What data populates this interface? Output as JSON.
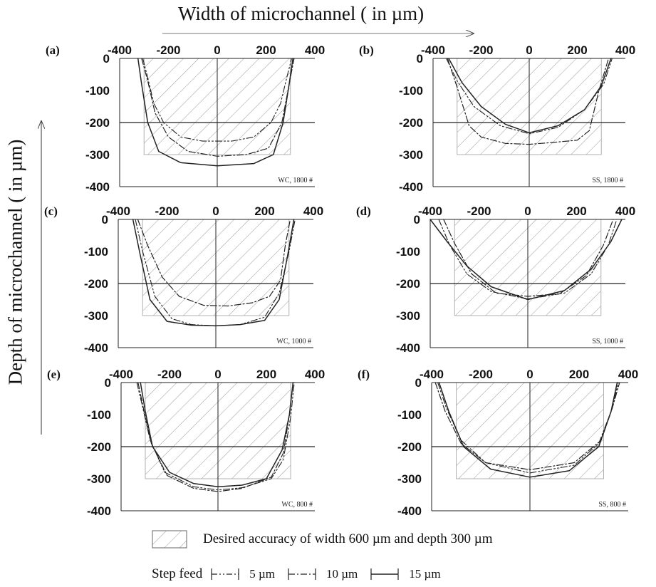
{
  "figure": {
    "title": "Width of microchannel ( in µm)",
    "ylabel": "Depth of microchannel ( in µm)",
    "legend": {
      "accuracy_label": "Desired accuracy of width 600 µm and depth 300 µm",
      "step_feed_label": "Step feed",
      "items": [
        {
          "label": "5 µm",
          "style": "dash-dot-dot"
        },
        {
          "label": "10 µm",
          "style": "dash-dot"
        },
        {
          "label": "15 µm",
          "style": "solid"
        }
      ]
    }
  },
  "chart_data": [
    {
      "panel": "(a)",
      "note": "WC, 1800 #",
      "type": "line",
      "xlim": [
        -400,
        400
      ],
      "ylim": [
        -400,
        0
      ],
      "xticks": [
        -400,
        -200,
        0,
        200,
        400
      ],
      "yticks": [
        0,
        -100,
        -200,
        -300,
        -400
      ],
      "target_region": {
        "x": [
          -300,
          300
        ],
        "y": [
          -300,
          0
        ]
      },
      "reference_line_y": -200,
      "series": [
        {
          "name": "5 µm",
          "points": [
            [
              -305,
              0
            ],
            [
              -285,
              -60
            ],
            [
              -260,
              -140
            ],
            [
              -220,
              -200
            ],
            [
              -150,
              -245
            ],
            [
              -60,
              -258
            ],
            [
              60,
              -258
            ],
            [
              150,
              -245
            ],
            [
              220,
              -200
            ],
            [
              260,
              -140
            ],
            [
              285,
              -60
            ],
            [
              305,
              0
            ]
          ]
        },
        {
          "name": "10 µm",
          "points": [
            [
              -310,
              0
            ],
            [
              -285,
              -70
            ],
            [
              -255,
              -170
            ],
            [
              -200,
              -245
            ],
            [
              -120,
              -290
            ],
            [
              0,
              -305
            ],
            [
              120,
              -300
            ],
            [
              210,
              -280
            ],
            [
              265,
              -200
            ],
            [
              290,
              -100
            ],
            [
              315,
              0
            ]
          ]
        },
        {
          "name": "15 µm",
          "points": [
            [
              -325,
              0
            ],
            [
              -310,
              -80
            ],
            [
              -285,
              -200
            ],
            [
              -240,
              -290
            ],
            [
              -150,
              -325
            ],
            [
              0,
              -335
            ],
            [
              150,
              -328
            ],
            [
              230,
              -300
            ],
            [
              270,
              -200
            ],
            [
              295,
              -80
            ],
            [
              310,
              0
            ]
          ]
        }
      ]
    },
    {
      "panel": "(b)",
      "note": "SS, 1800 #",
      "type": "line",
      "xlim": [
        -400,
        400
      ],
      "ylim": [
        -400,
        0
      ],
      "xticks": [
        -400,
        -200,
        0,
        200,
        400
      ],
      "yticks": [
        0,
        -100,
        -200,
        -300,
        -400
      ],
      "target_region": {
        "x": [
          -300,
          300
        ],
        "y": [
          -300,
          0
        ]
      },
      "reference_line_y": -200,
      "series": [
        {
          "name": "5 µm",
          "points": [
            [
              -345,
              0
            ],
            [
              -300,
              -70
            ],
            [
              -230,
              -150
            ],
            [
              -120,
              -210
            ],
            [
              0,
              -235
            ],
            [
              120,
              -215
            ],
            [
              230,
              -160
            ],
            [
              310,
              -80
            ],
            [
              345,
              0
            ]
          ]
        },
        {
          "name": "10 µm",
          "points": [
            [
              -340,
              0
            ],
            [
              -300,
              -90
            ],
            [
              -250,
              -210
            ],
            [
              -200,
              -245
            ],
            [
              -100,
              -265
            ],
            [
              0,
              -268
            ],
            [
              100,
              -262
            ],
            [
              200,
              -255
            ],
            [
              250,
              -225
            ],
            [
              290,
              -100
            ],
            [
              330,
              0
            ]
          ]
        },
        {
          "name": "15 µm",
          "points": [
            [
              -335,
              0
            ],
            [
              -280,
              -75
            ],
            [
              -200,
              -150
            ],
            [
              -100,
              -205
            ],
            [
              0,
              -232
            ],
            [
              120,
              -210
            ],
            [
              230,
              -160
            ],
            [
              300,
              -85
            ],
            [
              340,
              0
            ]
          ]
        }
      ]
    },
    {
      "panel": "(c)",
      "note": "WC, 1000 #",
      "type": "line",
      "xlim": [
        -400,
        400
      ],
      "ylim": [
        -400,
        0
      ],
      "xticks": [
        -400,
        -200,
        0,
        200,
        400
      ],
      "yticks": [
        0,
        -100,
        -200,
        -300,
        -400
      ],
      "target_region": {
        "x": [
          -300,
          300
        ],
        "y": [
          -300,
          0
        ]
      },
      "reference_line_y": -200,
      "series": [
        {
          "name": "5 µm",
          "points": [
            [
              -330,
              0
            ],
            [
              -300,
              -100
            ],
            [
              -250,
              -240
            ],
            [
              -180,
              -310
            ],
            [
              -100,
              -328
            ],
            [
              0,
              -332
            ],
            [
              100,
              -328
            ],
            [
              200,
              -305
            ],
            [
              260,
              -230
            ],
            [
              300,
              -100
            ],
            [
              325,
              0
            ]
          ]
        },
        {
          "name": "10 µm",
          "points": [
            [
              -320,
              0
            ],
            [
              -280,
              -80
            ],
            [
              -220,
              -180
            ],
            [
              -150,
              -240
            ],
            [
              -50,
              -268
            ],
            [
              50,
              -270
            ],
            [
              150,
              -260
            ],
            [
              220,
              -240
            ],
            [
              265,
              -190
            ],
            [
              285,
              -80
            ],
            [
              305,
              0
            ]
          ]
        },
        {
          "name": "15 µm",
          "points": [
            [
              -340,
              0
            ],
            [
              -310,
              -110
            ],
            [
              -270,
              -250
            ],
            [
              -200,
              -318
            ],
            [
              -100,
              -330
            ],
            [
              0,
              -332
            ],
            [
              100,
              -328
            ],
            [
              200,
              -315
            ],
            [
              260,
              -250
            ],
            [
              295,
              -110
            ],
            [
              320,
              0
            ]
          ]
        }
      ]
    },
    {
      "panel": "(d)",
      "note": "SS, 1000 #",
      "type": "line",
      "xlim": [
        -400,
        400
      ],
      "ylim": [
        -400,
        0
      ],
      "xticks": [
        -400,
        -200,
        0,
        200,
        400
      ],
      "yticks": [
        0,
        -100,
        -200,
        -300,
        -400
      ],
      "target_region": {
        "x": [
          -300,
          300
        ],
        "y": [
          -300,
          0
        ]
      },
      "reference_line_y": -200,
      "series": [
        {
          "name": "5 µm",
          "points": [
            [
              -365,
              0
            ],
            [
              -320,
              -80
            ],
            [
              -250,
              -170
            ],
            [
              -150,
              -225
            ],
            [
              0,
              -248
            ],
            [
              150,
              -230
            ],
            [
              260,
              -170
            ],
            [
              330,
              -80
            ],
            [
              365,
              0
            ]
          ]
        },
        {
          "name": "10 µm",
          "points": [
            [
              -345,
              0
            ],
            [
              -300,
              -75
            ],
            [
              -230,
              -170
            ],
            [
              -130,
              -230
            ],
            [
              0,
              -240
            ],
            [
              130,
              -232
            ],
            [
              240,
              -175
            ],
            [
              310,
              -80
            ],
            [
              350,
              0
            ]
          ]
        },
        {
          "name": "15 µm",
          "points": [
            [
              -400,
              0
            ],
            [
              -330,
              -70
            ],
            [
              -250,
              -145
            ],
            [
              -150,
              -210
            ],
            [
              0,
              -250
            ],
            [
              150,
              -222
            ],
            [
              260,
              -155
            ],
            [
              340,
              -70
            ],
            [
              385,
              0
            ]
          ]
        }
      ]
    },
    {
      "panel": "(e)",
      "note": "WC, 800 #",
      "type": "line",
      "xlim": [
        -400,
        400
      ],
      "ylim": [
        -400,
        0
      ],
      "xticks": [
        -400,
        -200,
        0,
        200,
        400
      ],
      "yticks": [
        0,
        -100,
        -200,
        -300,
        -400
      ],
      "target_region": {
        "x": [
          -300,
          300
        ],
        "y": [
          -300,
          0
        ]
      },
      "reference_line_y": -200,
      "series": [
        {
          "name": "5 µm",
          "points": [
            [
              -335,
              0
            ],
            [
              -310,
              -80
            ],
            [
              -280,
              -180
            ],
            [
              -220,
              -280
            ],
            [
              -100,
              -325
            ],
            [
              0,
              -335
            ],
            [
              100,
              -328
            ],
            [
              220,
              -300
            ],
            [
              270,
              -240
            ],
            [
              300,
              -110
            ],
            [
              315,
              0
            ]
          ]
        },
        {
          "name": "10 µm",
          "points": [
            [
              -330,
              0
            ],
            [
              -305,
              -90
            ],
            [
              -275,
              -190
            ],
            [
              -210,
              -290
            ],
            [
              -100,
              -330
            ],
            [
              0,
              -340
            ],
            [
              100,
              -330
            ],
            [
              220,
              -295
            ],
            [
              270,
              -220
            ],
            [
              295,
              -100
            ],
            [
              310,
              0
            ]
          ]
        },
        {
          "name": "15 µm",
          "points": [
            [
              -320,
              0
            ],
            [
              -300,
              -90
            ],
            [
              -270,
              -200
            ],
            [
              -200,
              -280
            ],
            [
              -100,
              -315
            ],
            [
              0,
              -325
            ],
            [
              100,
              -320
            ],
            [
              200,
              -300
            ],
            [
              265,
              -210
            ],
            [
              295,
              -100
            ],
            [
              310,
              0
            ]
          ]
        }
      ]
    },
    {
      "panel": "(f)",
      "note": "SS, 800 #",
      "type": "line",
      "xlim": [
        -400,
        400
      ],
      "ylim": [
        -400,
        0
      ],
      "xticks": [
        -400,
        -200,
        0,
        200,
        400
      ],
      "yticks": [
        0,
        -100,
        -200,
        -300,
        -400
      ],
      "target_region": {
        "x": [
          -300,
          300
        ],
        "y": [
          -300,
          0
        ]
      },
      "reference_line_y": -200,
      "series": [
        {
          "name": "5 µm",
          "points": [
            [
              -375,
              0
            ],
            [
              -340,
              -80
            ],
            [
              -280,
              -180
            ],
            [
              -180,
              -250
            ],
            [
              0,
              -282
            ],
            [
              180,
              -258
            ],
            [
              280,
              -190
            ],
            [
              330,
              -90
            ],
            [
              360,
              0
            ]
          ]
        },
        {
          "name": "10 µm",
          "points": [
            [
              -385,
              0
            ],
            [
              -345,
              -90
            ],
            [
              -280,
              -190
            ],
            [
              -180,
              -250
            ],
            [
              0,
              -272
            ],
            [
              180,
              -250
            ],
            [
              290,
              -180
            ],
            [
              335,
              -80
            ],
            [
              365,
              0
            ]
          ]
        },
        {
          "name": "15 µm",
          "points": [
            [
              -370,
              0
            ],
            [
              -330,
              -90
            ],
            [
              -270,
              -200
            ],
            [
              -160,
              -270
            ],
            [
              0,
              -295
            ],
            [
              160,
              -275
            ],
            [
              280,
              -200
            ],
            [
              330,
              -90
            ],
            [
              355,
              0
            ]
          ]
        }
      ]
    }
  ]
}
